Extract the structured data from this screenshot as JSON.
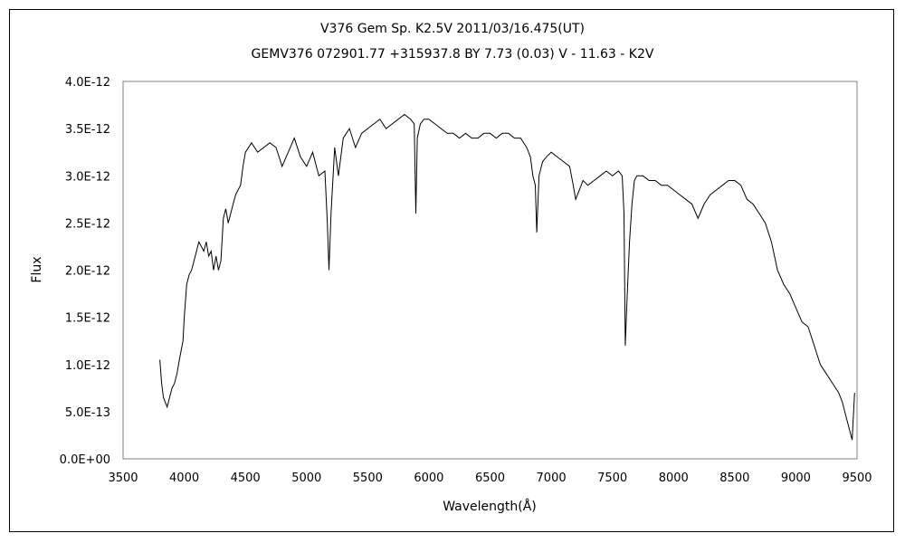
{
  "chart_data": {
    "type": "line",
    "title": "V376 Gem    Sp. K2.5V    2011/03/16.475(UT)",
    "subtitle": "GEMV376 072901.77 +315937.8 BY 7.73 (0.03) V - 11.63 - K2V",
    "xlabel": "Wavelength(Å)",
    "ylabel": "Flux",
    "xlim": [
      3500,
      9500
    ],
    "ylim": [
      0,
      4e-12
    ],
    "x_ticks": [
      "3500",
      "4000",
      "4500",
      "5000",
      "5500",
      "6000",
      "6500",
      "7000",
      "7500",
      "8000",
      "8500",
      "9000",
      "9500"
    ],
    "y_ticks": [
      "0.0E+00",
      "5.0E-13",
      "1.0E-12",
      "1.5E-12",
      "2.0E-12",
      "2.5E-12",
      "3.0E-12",
      "3.5E-12",
      "4.0E-12"
    ],
    "grid": false,
    "legend": "none",
    "line_color": "#000000",
    "series": [
      {
        "x": [
          3800,
          3815,
          3830,
          3845,
          3860,
          3880,
          3900,
          3920,
          3940,
          3960,
          3975,
          3990,
          4000,
          4020,
          4040,
          4060,
          4080,
          4100,
          4120,
          4140,
          4160,
          4180,
          4200,
          4220,
          4240,
          4260,
          4280,
          4300,
          4320,
          4340,
          4360,
          4380,
          4400,
          4420,
          4440,
          4460,
          4480,
          4500,
          4550,
          4600,
          4650,
          4700,
          4750,
          4800,
          4850,
          4900,
          4950,
          5000,
          5050,
          5100,
          5150,
          5170,
          5183,
          5200,
          5230,
          5260,
          5300,
          5350,
          5400,
          5450,
          5500,
          5550,
          5600,
          5650,
          5700,
          5750,
          5800,
          5850,
          5880,
          5893,
          5905,
          5930,
          5960,
          6000,
          6050,
          6100,
          6150,
          6200,
          6250,
          6300,
          6350,
          6400,
          6450,
          6500,
          6550,
          6600,
          6650,
          6700,
          6750,
          6800,
          6830,
          6850,
          6870,
          6882,
          6900,
          6930,
          6960,
          7000,
          7050,
          7100,
          7150,
          7180,
          7200,
          7230,
          7260,
          7300,
          7350,
          7400,
          7450,
          7500,
          7550,
          7580,
          7595,
          7605,
          7620,
          7640,
          7660,
          7680,
          7700,
          7750,
          7800,
          7850,
          7900,
          7950,
          8000,
          8050,
          8100,
          8150,
          8200,
          8250,
          8300,
          8350,
          8400,
          8450,
          8500,
          8550,
          8600,
          8650,
          8700,
          8750,
          8800,
          8850,
          8900,
          8950,
          9000,
          9050,
          9100,
          9150,
          9200,
          9250,
          9300,
          9350,
          9380,
          9410,
          9440,
          9460,
          9480
        ],
        "y": [
          1.05e-12,
          8e-13,
          6.5e-13,
          6e-13,
          5.5e-13,
          6.5e-13,
          7.5e-13,
          8e-13,
          9e-13,
          1.05e-12,
          1.15e-12,
          1.25e-12,
          1.5e-12,
          1.85e-12,
          1.95e-12,
          2e-12,
          2.1e-12,
          2.2e-12,
          2.3e-12,
          2.25e-12,
          2.2e-12,
          2.3e-12,
          2.15e-12,
          2.2e-12,
          2e-12,
          2.15e-12,
          2e-12,
          2.1e-12,
          2.55e-12,
          2.65e-12,
          2.5e-12,
          2.6e-12,
          2.7e-12,
          2.8e-12,
          2.85e-12,
          2.9e-12,
          3.1e-12,
          3.25e-12,
          3.35e-12,
          3.25e-12,
          3.3e-12,
          3.35e-12,
          3.3e-12,
          3.1e-12,
          3.25e-12,
          3.4e-12,
          3.2e-12,
          3.1e-12,
          3.25e-12,
          3e-12,
          3.05e-12,
          2.5e-12,
          2e-12,
          2.6e-12,
          3.3e-12,
          3e-12,
          3.4e-12,
          3.5e-12,
          3.3e-12,
          3.45e-12,
          3.5e-12,
          3.55e-12,
          3.6e-12,
          3.5e-12,
          3.55e-12,
          3.6e-12,
          3.65e-12,
          3.6e-12,
          3.55e-12,
          2.6e-12,
          3.4e-12,
          3.55e-12,
          3.6e-12,
          3.6e-12,
          3.55e-12,
          3.5e-12,
          3.45e-12,
          3.45e-12,
          3.4e-12,
          3.45e-12,
          3.4e-12,
          3.4e-12,
          3.45e-12,
          3.45e-12,
          3.4e-12,
          3.45e-12,
          3.45e-12,
          3.4e-12,
          3.4e-12,
          3.3e-12,
          3.2e-12,
          3e-12,
          2.9e-12,
          2.4e-12,
          3e-12,
          3.15e-12,
          3.2e-12,
          3.25e-12,
          3.2e-12,
          3.15e-12,
          3.1e-12,
          2.9e-12,
          2.75e-12,
          2.85e-12,
          2.95e-12,
          2.9e-12,
          2.95e-12,
          3e-12,
          3.05e-12,
          3e-12,
          3.05e-12,
          3e-12,
          2.6e-12,
          1.2e-12,
          1.7e-12,
          2.3e-12,
          2.7e-12,
          2.95e-12,
          3e-12,
          3e-12,
          2.95e-12,
          2.95e-12,
          2.9e-12,
          2.9e-12,
          2.85e-12,
          2.8e-12,
          2.75e-12,
          2.7e-12,
          2.55e-12,
          2.7e-12,
          2.8e-12,
          2.85e-12,
          2.9e-12,
          2.95e-12,
          2.95e-12,
          2.9e-12,
          2.75e-12,
          2.7e-12,
          2.6e-12,
          2.5e-12,
          2.3e-12,
          2e-12,
          1.85e-12,
          1.75e-12,
          1.6e-12,
          1.45e-12,
          1.4e-12,
          1.2e-12,
          1e-12,
          9e-13,
          8e-13,
          7e-13,
          6e-13,
          4.5e-13,
          3e-13,
          2e-13,
          7e-13
        ]
      }
    ]
  }
}
